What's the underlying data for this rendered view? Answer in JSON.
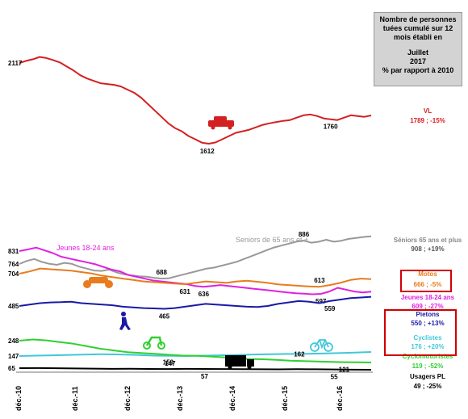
{
  "info_box": {
    "line1": "Nombre de personnes",
    "line2": "tuées cumulé sur 12",
    "line3": "mois établi en",
    "line4": "Juillet",
    "line5": "2017",
    "line6": "% par rapport à 2010"
  },
  "colors": {
    "vl": "#d42020",
    "jeunes": "#e020e0",
    "seniors": "#999999",
    "motos": "#e87c1e",
    "pietons": "#1a1aa6",
    "cyclistes": "#40c8d8",
    "cyclomoteurs": "#30d030",
    "pl": "#000000",
    "highlight": "#d00000"
  },
  "chart_data": {
    "type": "line",
    "x_ticks": [
      "déc.-10",
      "déc.-11",
      "déc.-12",
      "déc.-13",
      "déc.-14",
      "déc.-15",
      "déc.-16"
    ],
    "series": [
      {
        "key": "vl",
        "name": "VL",
        "summary": "1789 ; -15%",
        "color": "#d42020",
        "values": [
          2117,
          2130,
          2140,
          2155,
          2148,
          2135,
          2120,
          2095,
          2070,
          2040,
          2020,
          2005,
          1990,
          1985,
          1980,
          1970,
          1950,
          1930,
          1900,
          1860,
          1820,
          1780,
          1740,
          1710,
          1690,
          1660,
          1640,
          1618,
          1612,
          1620,
          1640,
          1660,
          1680,
          1690,
          1700,
          1715,
          1730,
          1740,
          1748,
          1755,
          1760,
          1775,
          1790,
          1795,
          1785,
          1770,
          1765,
          1760,
          1775,
          1790,
          1785,
          1780,
          1789
        ],
        "labels": [
          {
            "i": 0,
            "text": "2117",
            "pos": "left"
          },
          {
            "i": 28,
            "text": "1612",
            "pos": "below-left"
          },
          {
            "i": 46,
            "text": "1760",
            "pos": "below"
          }
        ],
        "icon": "car-icon"
      },
      {
        "key": "seniors",
        "name": "Séniors 65 ans et plus",
        "summary": "908 ; +19%",
        "color": "#999999",
        "values": [
          764,
          780,
          790,
          775,
          765,
          760,
          770,
          765,
          750,
          740,
          730,
          728,
          735,
          720,
          710,
          705,
          700,
          698,
          692,
          688,
          690,
          700,
          710,
          720,
          730,
          740,
          745,
          755,
          765,
          775,
          790,
          805,
          820,
          835,
          850,
          860,
          870,
          880,
          886,
          875,
          880,
          890,
          880,
          885,
          895,
          900,
          905,
          908
        ],
        "labels": [
          {
            "i": 0,
            "text": "764",
            "pos": "left"
          },
          {
            "i": 19,
            "text": "688",
            "pos": "above"
          },
          {
            "i": 38,
            "text": "886",
            "pos": "above"
          }
        ],
        "inline_label": "Seniors de 65 ans et +"
      },
      {
        "key": "jeunes",
        "name": "Jeunes 18-24 ans",
        "summary": "609 ; -27%",
        "color": "#e020e0",
        "values": [
          831,
          840,
          850,
          835,
          820,
          800,
          790,
          780,
          770,
          760,
          745,
          730,
          720,
          700,
          690,
          680,
          670,
          665,
          660,
          655,
          650,
          640,
          636,
          640,
          645,
          640,
          635,
          630,
          625,
          620,
          615,
          610,
          605,
          600,
          598,
          595,
          597,
          610,
          630,
          620,
          610,
          605,
          609
        ],
        "labels": [
          {
            "i": 0,
            "text": "831",
            "pos": "left"
          },
          {
            "i": 22,
            "text": "636",
            "pos": "below"
          },
          {
            "i": 36,
            "text": "597",
            "pos": "below"
          }
        ],
        "inline_label": "Jeunes 18-24 ans"
      },
      {
        "key": "motos",
        "name": "Motos",
        "summary": "666 ; -5%",
        "color": "#e87c1e",
        "values": [
          704,
          720,
          740,
          735,
          730,
          725,
          715,
          705,
          690,
          680,
          670,
          660,
          650,
          645,
          640,
          635,
          631,
          640,
          650,
          645,
          640,
          650,
          655,
          648,
          640,
          630,
          625,
          620,
          615,
          613,
          625,
          640,
          660,
          670,
          666
        ],
        "labels": [
          {
            "i": 0,
            "text": "704",
            "pos": "left"
          },
          {
            "i": 16,
            "text": "631",
            "pos": "below"
          },
          {
            "i": 29,
            "text": "613",
            "pos": "above"
          }
        ],
        "icon": "motorcycle-icon"
      },
      {
        "key": "pietons",
        "name": "Pietons",
        "summary": "550 ; +13%",
        "color": "#1a1aa6",
        "values": [
          485,
          495,
          505,
          510,
          512,
          515,
          505,
          500,
          495,
          490,
          480,
          475,
          470,
          468,
          465,
          470,
          480,
          490,
          500,
          495,
          490,
          485,
          480,
          478,
          485,
          500,
          510,
          520,
          515,
          505,
          520,
          530,
          540,
          545,
          550
        ],
        "labels": [
          {
            "i": 0,
            "text": "485",
            "pos": "left"
          },
          {
            "i": 14,
            "text": "465",
            "pos": "below"
          },
          {
            "i": 30,
            "text": "559",
            "pos": "below"
          }
        ],
        "icon": "pedestrian-icon"
      },
      {
        "key": "cyclistes",
        "name": "Cyclistes",
        "summary": "176 ; +20%",
        "color": "#40c8d8",
        "values": [
          147,
          150,
          152,
          155,
          158,
          160,
          158,
          155,
          150,
          148,
          147,
          150,
          152,
          155,
          158,
          160,
          162,
          162,
          165,
          168,
          172,
          176
        ],
        "labels": [
          {
            "i": 0,
            "text": "147",
            "pos": "left"
          },
          {
            "i": 9,
            "text": "147",
            "pos": "below"
          },
          {
            "i": 16,
            "text": "162",
            "pos": "right"
          }
        ],
        "icon": "bicycle-icon"
      },
      {
        "key": "cyclomoteurs",
        "name": "Cyclomotoristes",
        "summary": "119 ; -52%",
        "color": "#30d030",
        "values": [
          248,
          255,
          250,
          240,
          230,
          215,
          200,
          190,
          180,
          175,
          170,
          165,
          160,
          159,
          155,
          150,
          145,
          140,
          138,
          135,
          130,
          127,
          125,
          123,
          121,
          120,
          119
        ],
        "labels": [
          {
            "i": 0,
            "text": "248",
            "pos": "left"
          },
          {
            "i": 11,
            "text": "159",
            "pos": "below"
          },
          {
            "i": 24,
            "text": "121",
            "pos": "below"
          }
        ],
        "icon": "scooter-icon"
      },
      {
        "key": "pl",
        "name": "Usagers PL",
        "summary": "49 ; -25%",
        "color": "#000000",
        "values": [
          65,
          66,
          64,
          62,
          60,
          58,
          59,
          57,
          56,
          58,
          57,
          56,
          55,
          54,
          53,
          55,
          54,
          52,
          50,
          49
        ],
        "labels": [
          {
            "i": 0,
            "text": "65",
            "pos": "left"
          },
          {
            "i": 10,
            "text": "57",
            "pos": "below"
          },
          {
            "i": 17,
            "text": "55",
            "pos": "below"
          }
        ],
        "icon": "truck-icon"
      }
    ]
  }
}
